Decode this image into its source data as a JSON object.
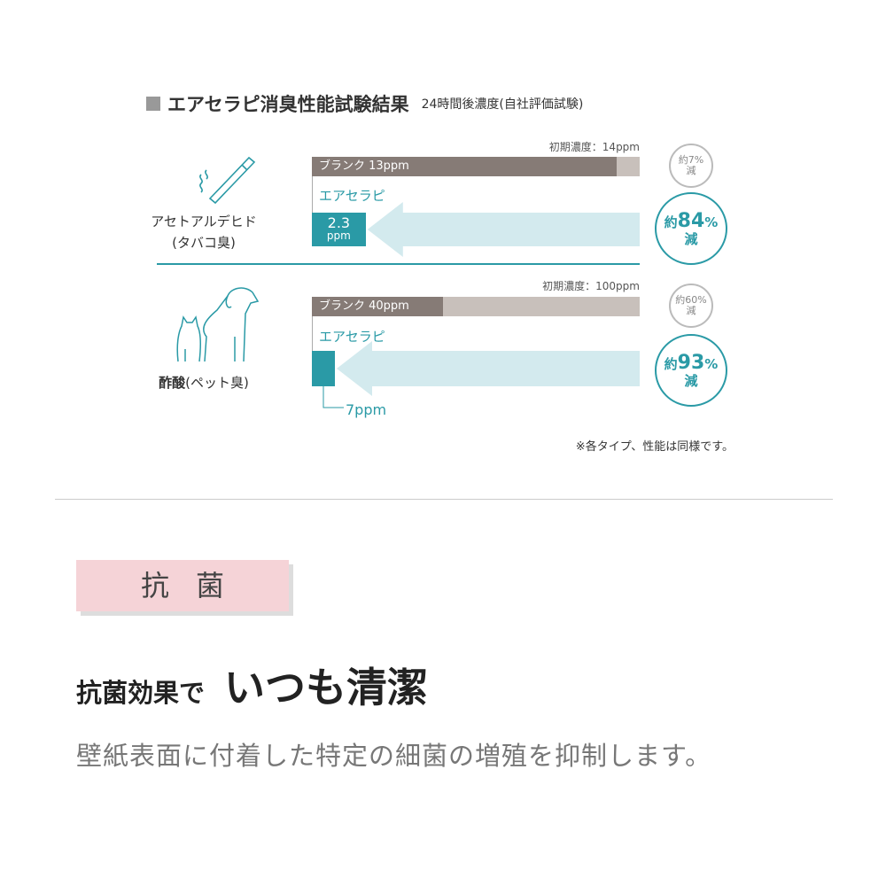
{
  "title": "エアセラピ消臭性能試験結果",
  "subtitle": "24時間後濃度(自社評価試験)",
  "colors": {
    "teal": "#2a9aa6",
    "blank": "#867b76",
    "track": "#c8c0bb",
    "arrow": "#d3eaee",
    "pink": "#f5d3d7"
  },
  "chart_data": [
    {
      "type": "bar",
      "name": "アセトアルデヒド",
      "sub": "(タバコ臭)",
      "icon": "cigarette-icon",
      "initial_label": "初期濃度：14ppm",
      "initial": 14,
      "blank_label": "ブランク 13ppm",
      "blank": 13,
      "product_label": "エアセラピ",
      "product": 2.3,
      "product_value": "2.3",
      "product_unit": "ppm",
      "blank_reduction": [
        "約7%",
        "減"
      ],
      "product_reduction": [
        "約",
        "84",
        "%",
        "減"
      ]
    },
    {
      "type": "bar",
      "name": "酢酸",
      "sub": "(ペット臭)",
      "icon": "dog-cat-icon",
      "initial_label": "初期濃度：100ppm",
      "initial": 100,
      "blank_label": "ブランク 40ppm",
      "blank": 40,
      "product_label": "エアセラピ",
      "product": 7,
      "product_value_label": "7ppm",
      "blank_reduction": [
        "約60%",
        "減"
      ],
      "product_reduction": [
        "約",
        "93",
        "%",
        "減"
      ]
    }
  ],
  "footnote": "※各タイプ、性能は同様です。",
  "section": {
    "badge": "抗菌",
    "headline_small": "抗菌効果で",
    "headline_large": "いつも清潔",
    "description": "壁紙表面に付着した特定の細菌の増殖を抑制します。"
  }
}
